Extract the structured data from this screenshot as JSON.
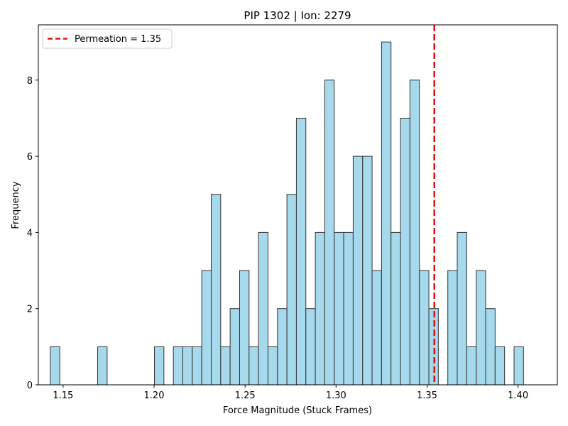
{
  "chart_data": {
    "type": "bar",
    "title": "PIP 1302 | Ion: 2279",
    "xlabel": "Force Magnitude (Stuck Frames)",
    "ylabel": "Frequency",
    "xlim": [
      1.1364,
      1.4216
    ],
    "ylim": [
      0,
      9.45
    ],
    "xticks": [
      1.15,
      1.2,
      1.25,
      1.3,
      1.35,
      1.4
    ],
    "xtick_labels": [
      "1.15",
      "1.20",
      "1.25",
      "1.30",
      "1.35",
      "1.40"
    ],
    "yticks": [
      0,
      2,
      4,
      6,
      8
    ],
    "ytick_labels": [
      "0",
      "2",
      "4",
      "6",
      "8"
    ],
    "bins": {
      "start": 1.143,
      "width": 0.0052,
      "counts": [
        1,
        0,
        0,
        0,
        0,
        1,
        0,
        0,
        0,
        0,
        0,
        1,
        0,
        1,
        1,
        1,
        3,
        5,
        1,
        2,
        3,
        1,
        4,
        1,
        2,
        5,
        7,
        2,
        4,
        8,
        4,
        4,
        6,
        6,
        3,
        9,
        4,
        7,
        8,
        3,
        2,
        0,
        3,
        4,
        1,
        3,
        2,
        1,
        0,
        1
      ]
    },
    "bar_color": "#a6d9ec",
    "bar_edge_color": "#333333",
    "threshold": {
      "value": 1.354,
      "color": "#e01010"
    },
    "legend": {
      "label": "Permeation = 1.35",
      "position": "top-left"
    },
    "grid": false
  }
}
